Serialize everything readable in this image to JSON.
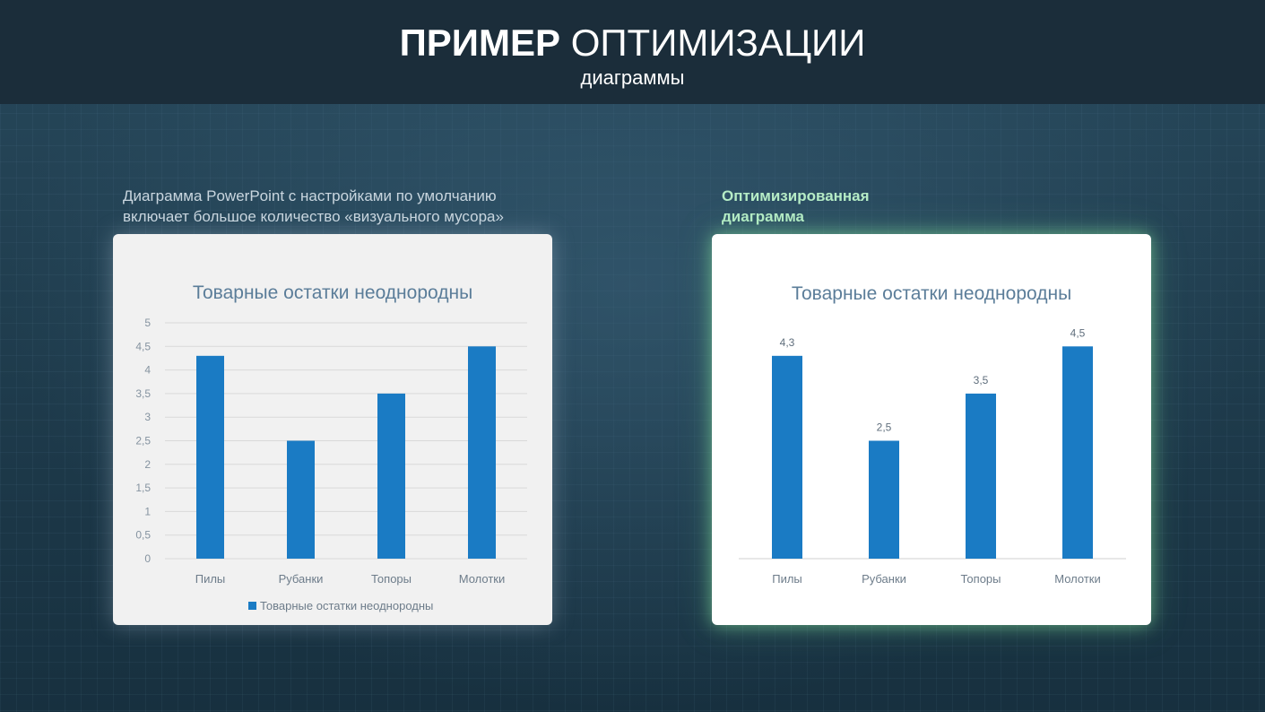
{
  "header": {
    "title_bold": "ПРИМЕР",
    "title_rest": "ОПТИМИЗАЦИИ",
    "subtitle": "диаграммы"
  },
  "captions": {
    "left_line1": "Диаграмма PowerPoint с настройками по умолчанию",
    "left_line2": "включает большое количество «визуального мусора»",
    "right_line1": "Оптимизированная",
    "right_line2": "диаграмма"
  },
  "colors": {
    "bar": "#1a7bc4",
    "grid": "#d9d9d9"
  },
  "chart_data": [
    {
      "type": "bar",
      "title": "Товарные остатки неоднородны",
      "categories": [
        "Пилы",
        "Рубанки",
        "Топоры",
        "Молотки"
      ],
      "series": [
        {
          "name": "Товарные остатки неоднородны",
          "values": [
            4.3,
            2.5,
            3.5,
            4.5
          ]
        }
      ],
      "ylim": [
        0,
        5
      ],
      "yticks": [
        "0",
        "0,5",
        "1",
        "1,5",
        "2",
        "2,5",
        "3",
        "3,5",
        "4",
        "4,5",
        "5"
      ],
      "grid": true,
      "legend": "bottom",
      "data_labels": false
    },
    {
      "type": "bar",
      "title": "Товарные остатки неоднородны",
      "categories": [
        "Пилы",
        "Рубанки",
        "Топоры",
        "Молотки"
      ],
      "series": [
        {
          "values": [
            4.3,
            2.5,
            3.5,
            4.5
          ]
        }
      ],
      "value_labels": [
        "4,3",
        "2,5",
        "3,5",
        "4,5"
      ],
      "ylim": [
        0,
        5
      ],
      "grid": false,
      "legend": "none",
      "data_labels": true
    }
  ]
}
